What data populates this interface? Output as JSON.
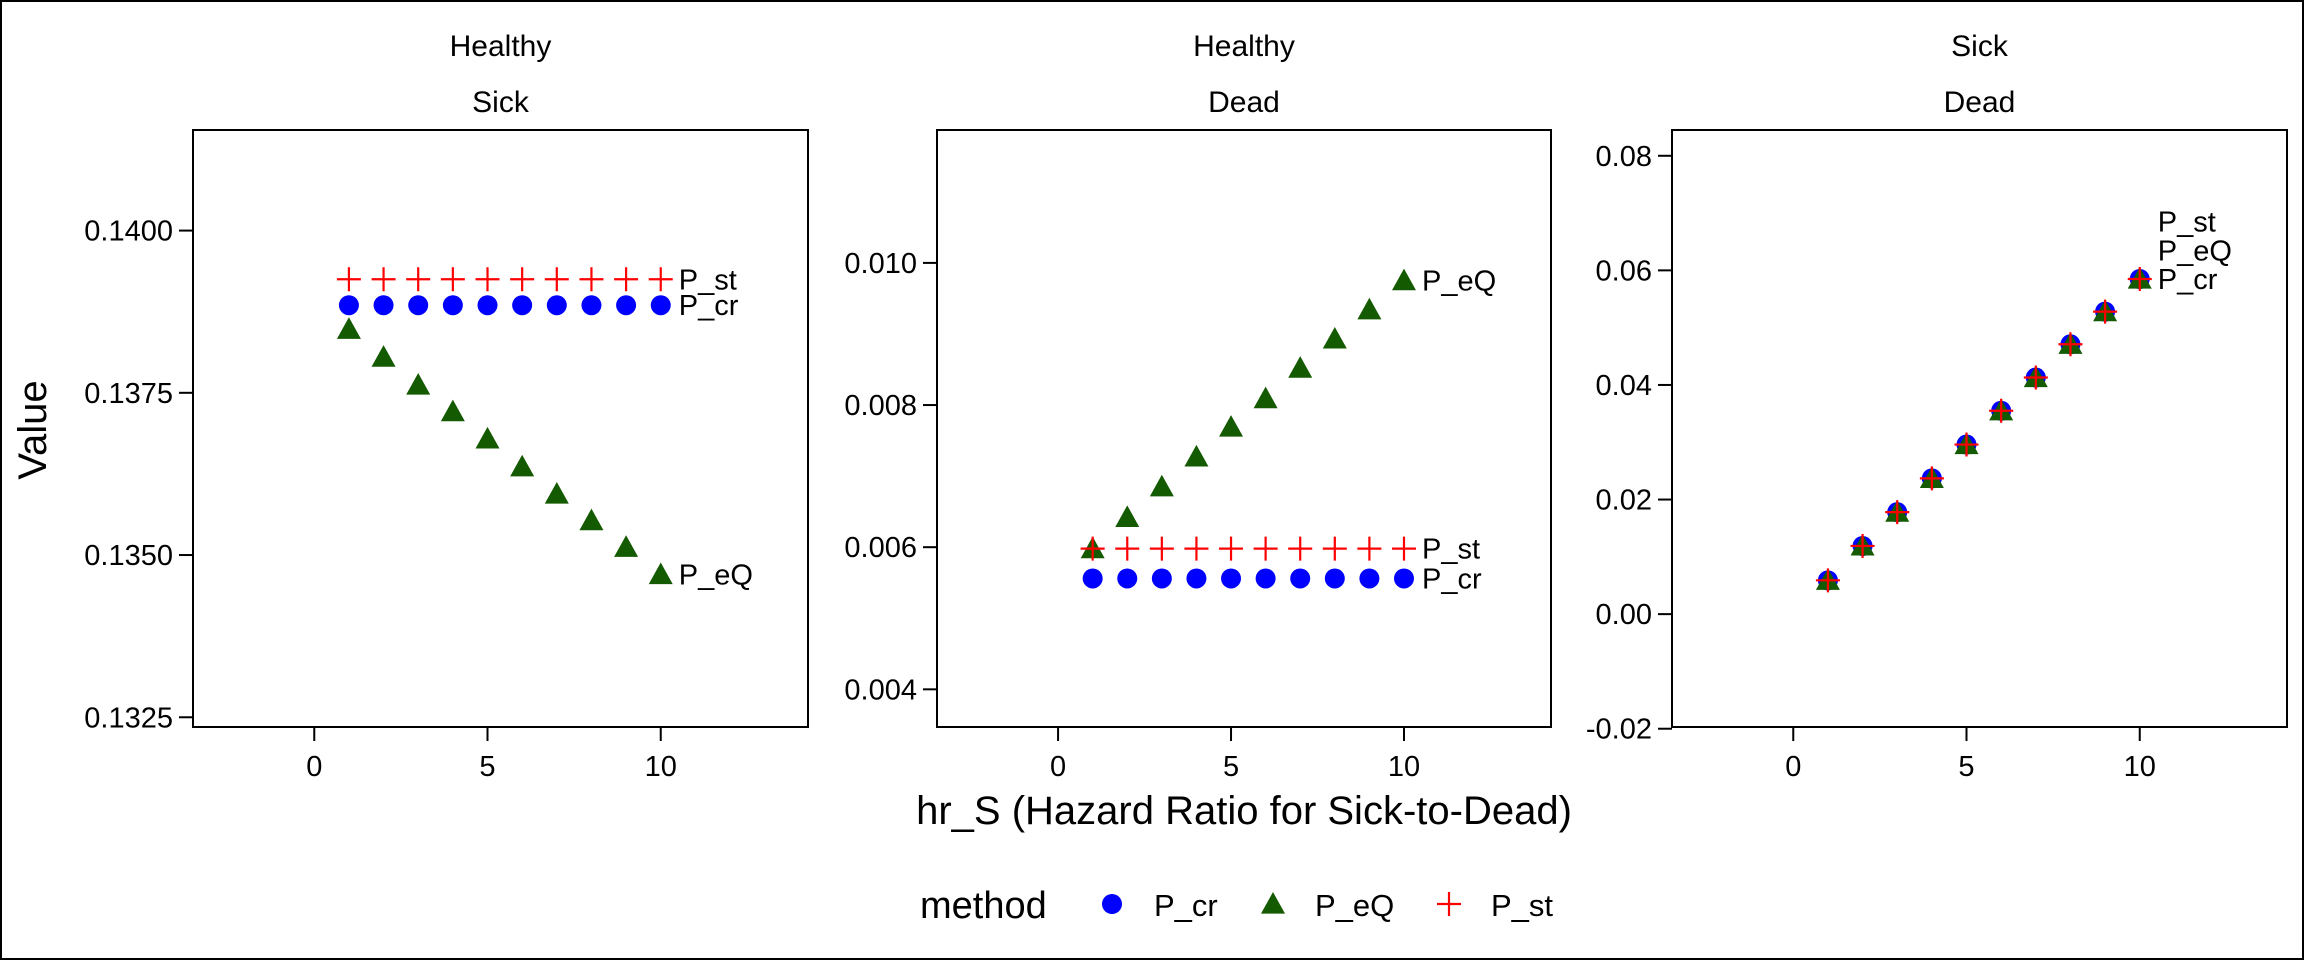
{
  "chart_data": {
    "type": "scatter",
    "xlabel": "hr_S (Hazard Ratio for Sick-to-Dead)",
    "ylabel": "Value",
    "legend": {
      "title": "method",
      "position": "bottom",
      "entries": [
        {
          "name": "P_cr",
          "shape": "circle",
          "color": "#0000ff"
        },
        {
          "name": "P_eQ",
          "shape": "triangle",
          "color": "#145a00"
        },
        {
          "name": "P_st",
          "shape": "plus",
          "color": "#ff0000"
        }
      ]
    },
    "grid": false,
    "panels": [
      {
        "strip": [
          "Healthy",
          "Sick"
        ],
        "xlim": [
          -3.5,
          14.25
        ],
        "ylim": [
          0.13235,
          0.14155
        ],
        "xticks": [
          0,
          5,
          10
        ],
        "yticks": [
          0.1325,
          0.135,
          0.1375,
          0.14
        ],
        "ytick_labels": [
          "0.1325",
          "0.1350",
          "0.1375",
          "0.1400"
        ],
        "x": [
          1,
          2,
          3,
          4,
          5,
          6,
          7,
          8,
          9,
          10
        ],
        "series": [
          {
            "name": "P_st",
            "values": [
              0.13925,
              0.13925,
              0.13925,
              0.13925,
              0.13925,
              0.13925,
              0.13925,
              0.13925,
              0.13925,
              0.13925
            ]
          },
          {
            "name": "P_cr",
            "values": [
              0.13885,
              0.13885,
              0.13885,
              0.13885,
              0.13885,
              0.13885,
              0.13885,
              0.13885,
              0.13885,
              0.13885
            ]
          },
          {
            "name": "P_eQ",
            "values": [
              0.13848,
              0.13805,
              0.13762,
              0.13721,
              0.13679,
              0.13636,
              0.13594,
              0.13553,
              0.13512,
              0.1347
            ]
          }
        ],
        "end_labels": [
          {
            "text": "P_st",
            "x": 10,
            "y": 0.13925
          },
          {
            "text": "P_cr",
            "x": 10,
            "y": 0.13885
          },
          {
            "text": "P_eQ",
            "x": 10,
            "y": 0.1347
          }
        ]
      },
      {
        "strip": [
          "Healthy",
          "Dead"
        ],
        "xlim": [
          -3.5,
          14.25
        ],
        "ylim": [
          0.00347,
          0.01187
        ],
        "xticks": [
          0,
          5,
          10
        ],
        "yticks": [
          0.004,
          0.006,
          0.008,
          0.01
        ],
        "ytick_labels": [
          "0.004",
          "0.006",
          "0.008",
          "0.010"
        ],
        "x": [
          1,
          2,
          3,
          4,
          5,
          6,
          7,
          8,
          9,
          10
        ],
        "series": [
          {
            "name": "P_st",
            "values": [
              0.00598,
              0.00598,
              0.00598,
              0.00598,
              0.00598,
              0.00598,
              0.00598,
              0.00598,
              0.00598,
              0.00598
            ]
          },
          {
            "name": "P_cr",
            "values": [
              0.00556,
              0.00556,
              0.00556,
              0.00556,
              0.00556,
              0.00556,
              0.00556,
              0.00556,
              0.00556,
              0.00556
            ]
          },
          {
            "name": "P_eQ",
            "values": [
              0.00598,
              0.00642,
              0.00685,
              0.00727,
              0.00769,
              0.00809,
              0.00852,
              0.00893,
              0.00934,
              0.00975
            ]
          }
        ],
        "end_labels": [
          {
            "text": "P_eQ",
            "x": 10,
            "y": 0.00975
          },
          {
            "text": "P_st",
            "x": 10,
            "y": 0.00598
          },
          {
            "text": "P_cr",
            "x": 10,
            "y": 0.00556
          }
        ]
      },
      {
        "strip": [
          "Sick",
          "Dead"
        ],
        "xlim": [
          -3.5,
          14.25
        ],
        "ylim": [
          -0.0197,
          0.0845
        ],
        "xticks": [
          0,
          5,
          10
        ],
        "yticks": [
          -0.02,
          0,
          0.02,
          0.04,
          0.06,
          0.08
        ],
        "ytick_labels": [
          "-0.02",
          "0.00",
          "0.02",
          "0.04",
          "0.06",
          "0.08"
        ],
        "x": [
          1,
          2,
          3,
          4,
          5,
          6,
          7,
          8,
          9,
          10
        ],
        "series": [
          {
            "name": "P_cr",
            "values": [
              0.0059,
              0.0119,
              0.0178,
              0.0237,
              0.0296,
              0.0355,
              0.0413,
              0.0471,
              0.0528,
              0.0585
            ]
          },
          {
            "name": "P_eQ",
            "values": [
              0.0059,
              0.0119,
              0.0178,
              0.0237,
              0.0296,
              0.0355,
              0.0413,
              0.0471,
              0.0528,
              0.0585
            ]
          },
          {
            "name": "P_st",
            "values": [
              0.0059,
              0.0119,
              0.0178,
              0.0237,
              0.0296,
              0.0355,
              0.0413,
              0.0471,
              0.0528,
              0.0585
            ]
          }
        ],
        "end_labels": [
          {
            "text": "P_st",
            "x": 10,
            "y": 0.0685
          },
          {
            "text": "P_eQ",
            "x": 10,
            "y": 0.0635
          },
          {
            "text": "P_cr",
            "x": 10,
            "y": 0.0585
          }
        ]
      }
    ]
  }
}
